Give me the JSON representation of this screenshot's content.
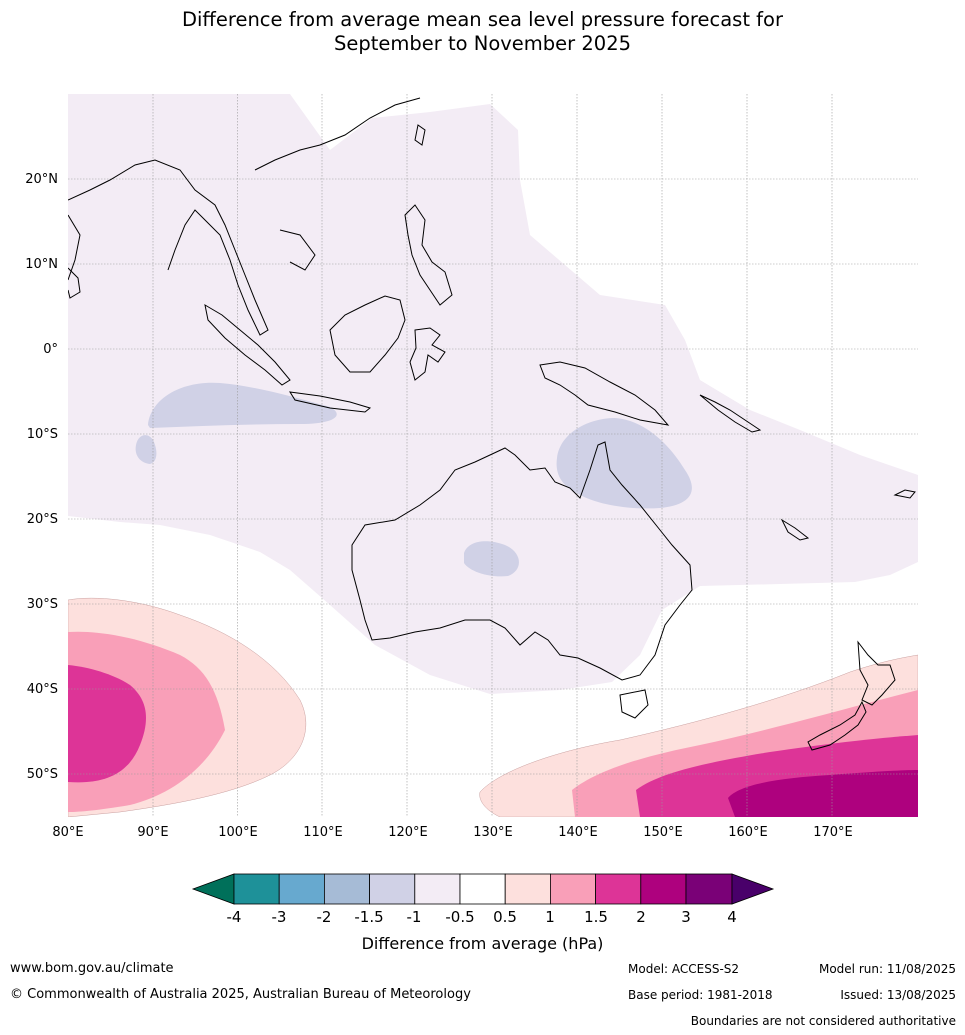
{
  "title": {
    "line1": "Difference from average mean sea level pressure forecast for",
    "line2": "September to November 2025"
  },
  "map": {
    "longitude_labels": [
      "80°E",
      "90°E",
      "100°E",
      "110°E",
      "120°E",
      "130°E",
      "140°E",
      "150°E",
      "160°E",
      "170°E"
    ],
    "latitude_labels": [
      "20°N",
      "10°N",
      "0°",
      "10°S",
      "20°S",
      "30°S",
      "40°S",
      "50°S"
    ],
    "region": "Australia and surrounding region"
  },
  "legend": {
    "title": "Difference from average (hPa)",
    "tick_labels": [
      "-4",
      "-3",
      "-2",
      "-1.5",
      "-1",
      "-0.5",
      "0.5",
      "1",
      "1.5",
      "2",
      "3",
      "4"
    ],
    "colors": {
      "below_-4": "#00705a",
      "-4_-3": "#1e9199",
      "-3_-2": "#67a9cf",
      "-2_-1.5": "#a6bbd6",
      "-1.5_-1": "#d0d1e6",
      "-1_-0.5": "#f3ecf5",
      "-0.5_0.5": "#ffffff",
      "0.5_1": "#fde0dd",
      "1_1.5": "#f99fb8",
      "1.5_2": "#dd3497",
      "2_3": "#ae017e",
      "3_4": "#7a0177",
      "above_4": "#49006a"
    }
  },
  "footer": {
    "website": "www.bom.gov.au/climate",
    "copyright": "© Commonwealth of Australia 2025, Australian Bureau of Meteorology",
    "model": "Model: ACCESS-S2",
    "base_period": "Base period: 1981-2018",
    "model_run": "Model run: 11/08/2025",
    "issued": "Issued: 13/08/2025",
    "disclaimer": "Boundaries are not considered authoritative"
  }
}
